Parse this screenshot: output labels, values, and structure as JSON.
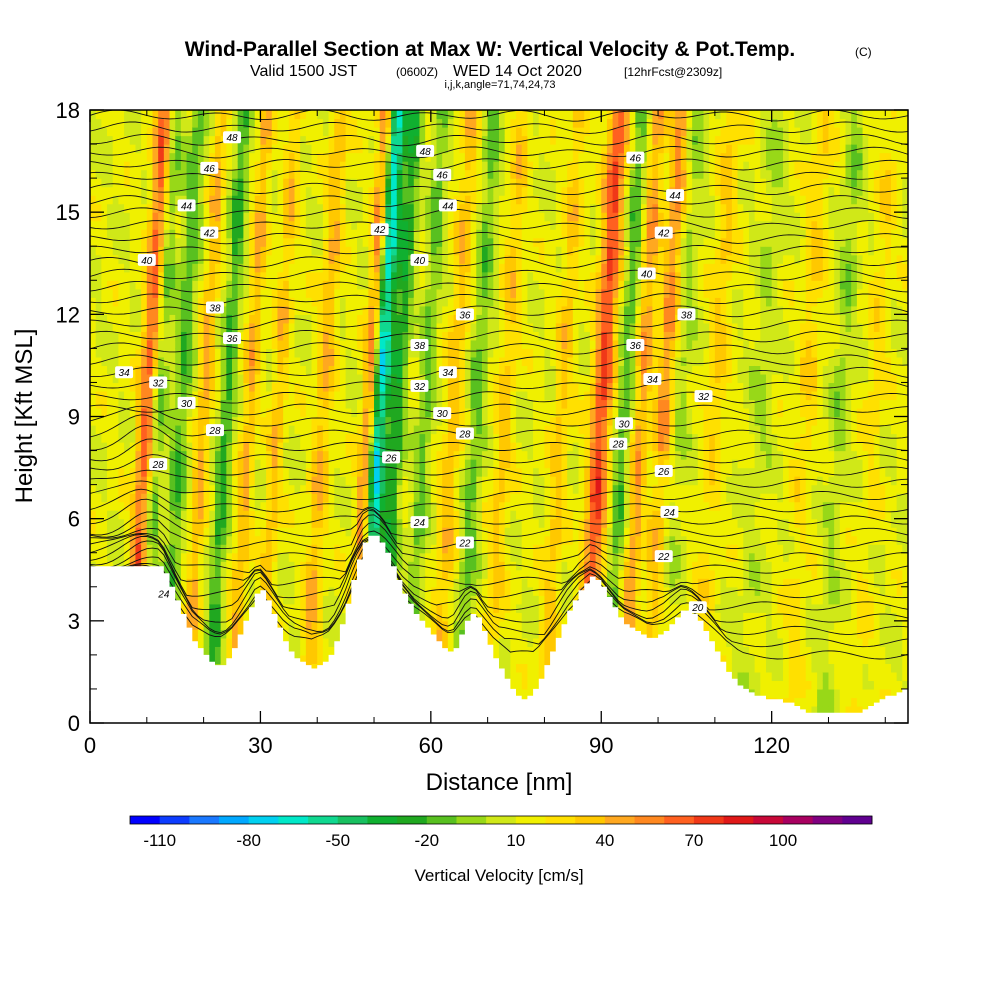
{
  "chart_data": {
    "type": "heatmap",
    "title": "Wind-Parallel Section at Max W: Vertical Velocity & Pot.Temp.",
    "title_mark": "(C)",
    "subtitle_a": "Valid 1500 JST",
    "subtitle_b": "(0600Z)",
    "subtitle_c": "WED 14 Oct 2020",
    "subtitle_d": "[12hrFcst@2309z]",
    "subtitle2": "i,j,k,angle=71,74,24,73",
    "xlabel": "Distance [nm]",
    "ylabel": "Height [Kft MSL]",
    "xlim": [
      0,
      144
    ],
    "ylim": [
      0,
      18
    ],
    "x_ticks": [
      "0",
      "30",
      "60",
      "90",
      "120"
    ],
    "y_ticks": [
      "0",
      "3",
      "6",
      "9",
      "12",
      "15",
      "18"
    ],
    "colorbar": {
      "label": "Vertical Velocity [cm/s]",
      "ticks": [
        "-110",
        "-80",
        "-50",
        "-20",
        "10",
        "40",
        "70",
        "100"
      ],
      "colors": [
        "#0000ff",
        "#0d3cff",
        "#1a78ff",
        "#00a8ff",
        "#00d0f0",
        "#00e8c8",
        "#10d890",
        "#18c060",
        "#10b030",
        "#20a820",
        "#58c020",
        "#98d818",
        "#d0e818",
        "#f0f000",
        "#ffe000",
        "#ffc800",
        "#ffa820",
        "#ff8820",
        "#ff6020",
        "#f03818",
        "#e01818",
        "#c80838",
        "#a80060",
        "#800080",
        "#600090"
      ]
    },
    "terrain_kft": [
      4.6,
      4.6,
      4.6,
      4.6,
      4.6,
      4.6,
      4.6,
      4.6,
      4.6,
      4.6,
      4.6,
      4.6,
      4.6,
      4.4,
      4.0,
      3.6,
      3.2,
      2.8,
      2.4,
      2.2,
      2.0,
      1.8,
      1.7,
      1.7,
      1.9,
      2.2,
      2.6,
      3.0,
      3.4,
      3.8,
      3.9,
      3.6,
      3.2,
      2.8,
      2.4,
      2.1,
      1.9,
      1.8,
      1.7,
      1.6,
      1.7,
      1.8,
      2.0,
      2.4,
      2.9,
      3.5,
      4.2,
      4.8,
      5.3,
      5.5,
      5.5,
      5.3,
      5.0,
      4.6,
      4.2,
      3.8,
      3.5,
      3.2,
      3.0,
      2.8,
      2.6,
      2.4,
      2.2,
      2.1,
      2.2,
      2.6,
      3.0,
      3.2,
      3.1,
      2.7,
      2.3,
      1.9,
      1.6,
      1.3,
      1.0,
      0.8,
      0.7,
      0.8,
      1.0,
      1.3,
      1.7,
      2.1,
      2.5,
      2.9,
      3.3,
      3.6,
      3.9,
      4.1,
      4.3,
      4.2,
      4.0,
      3.7,
      3.4,
      3.1,
      2.9,
      2.8,
      2.7,
      2.6,
      2.5,
      2.5,
      2.6,
      2.7,
      2.9,
      3.1,
      3.3,
      3.3,
      3.2,
      3.0,
      2.7,
      2.4,
      2.1,
      1.8,
      1.5,
      1.3,
      1.1,
      1.0,
      0.9,
      0.8,
      0.8,
      0.7,
      0.7,
      0.7,
      0.6,
      0.6,
      0.5,
      0.4,
      0.3,
      0.3,
      0.3,
      0.3,
      0.3,
      0.3,
      0.3,
      0.3,
      0.3,
      0.3,
      0.4,
      0.5,
      0.6,
      0.7,
      0.8,
      0.8,
      0.9,
      1.0,
      1.0
    ],
    "theta_contour_labels": [
      "20",
      "22",
      "24",
      "26",
      "28",
      "30",
      "32",
      "34",
      "36",
      "38",
      "40",
      "42",
      "44",
      "46",
      "48"
    ],
    "grid": false
  }
}
